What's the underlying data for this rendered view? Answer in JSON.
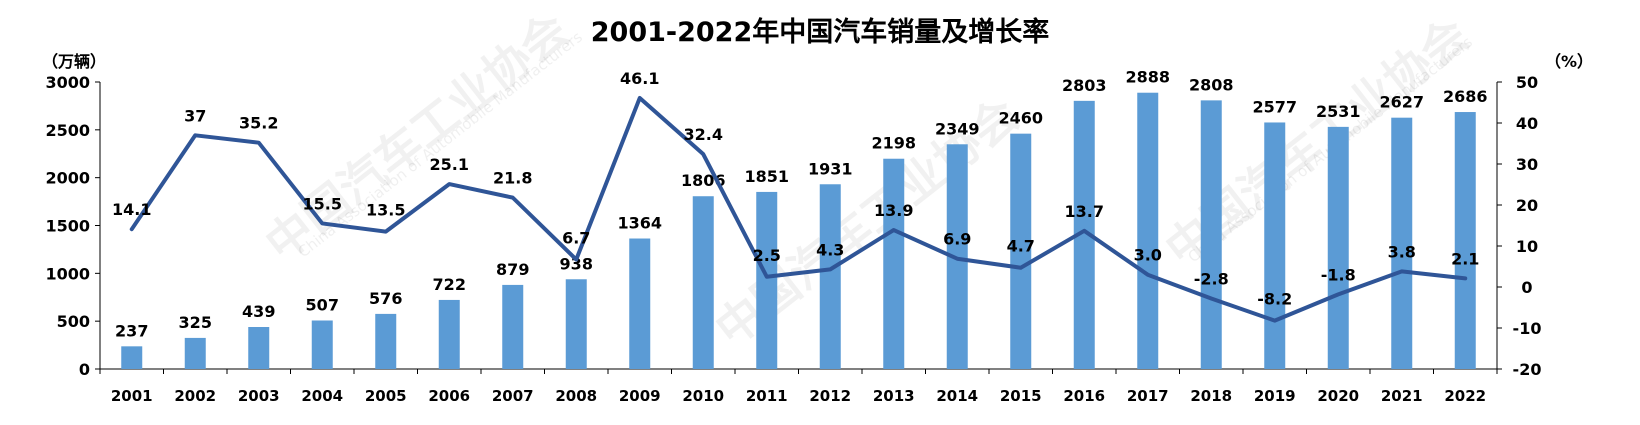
{
  "watermark": {
    "text": "中国汽车工业协会",
    "sub_text": "China Association of Automobile Manufacturers"
  },
  "colors": {
    "bar": "#5b9bd5",
    "line": "#2f5597"
  },
  "chart_data": {
    "type": "bar",
    "title": "2001-2022年中国汽车销量及增长率",
    "left_axis_unit": "（万辆）",
    "right_axis_unit": "（%）",
    "categories": [
      "2001",
      "2002",
      "2003",
      "2004",
      "2005",
      "2006",
      "2007",
      "2008",
      "2009",
      "2010",
      "2011",
      "2012",
      "2013",
      "2014",
      "2015",
      "2016",
      "2017",
      "2018",
      "2019",
      "2020",
      "2021",
      "2022"
    ],
    "series": [
      {
        "type": "bar",
        "axis": "left",
        "values": [
          237,
          325,
          439,
          507,
          576,
          722,
          879,
          938,
          1364,
          1806,
          1851,
          1931,
          2198,
          2349,
          2460,
          2803,
          2888,
          2808,
          2577,
          2531,
          2627,
          2686
        ],
        "labels": [
          "237",
          "325",
          "439",
          "507",
          "576",
          "722",
          "879",
          "938",
          "1364",
          "1806",
          "1851",
          "1931",
          "2198",
          "2349",
          "2460",
          "2803",
          "2888",
          "2808",
          "2577",
          "2531",
          "2627",
          "2686"
        ]
      },
      {
        "type": "line",
        "axis": "right",
        "values": [
          14.1,
          37,
          35.2,
          15.5,
          13.5,
          25.1,
          21.8,
          6.7,
          46.1,
          32.4,
          2.5,
          4.3,
          13.9,
          6.9,
          4.7,
          13.7,
          3.0,
          -2.8,
          -8.2,
          -1.8,
          3.8,
          2.1
        ],
        "labels": [
          "14.1",
          "37",
          "35.2",
          "15.5",
          "13.5",
          "25.1",
          "21.8",
          "6.7",
          "46.1",
          "32.4",
          "2.5",
          "4.3",
          "13.9",
          "6.9",
          "4.7",
          "13.7",
          "3.0",
          "-2.8",
          "-8.2",
          "-1.8",
          "3.8",
          "2.1"
        ]
      }
    ],
    "left_axis": {
      "min": 0,
      "max": 3000,
      "ticks": [
        0,
        500,
        1000,
        1500,
        2000,
        2500,
        3000
      ],
      "tick_labels": [
        "0",
        "500",
        "1000",
        "1500",
        "2000",
        "2500",
        "3000"
      ]
    },
    "right_axis": {
      "min": -20,
      "max": 50,
      "ticks": [
        -20,
        -10,
        0,
        10,
        20,
        30,
        40,
        50
      ],
      "tick_labels": [
        "-20",
        "-10",
        "0",
        "10",
        "20",
        "30",
        "40",
        "50"
      ]
    },
    "grid": false,
    "legend": "none"
  }
}
